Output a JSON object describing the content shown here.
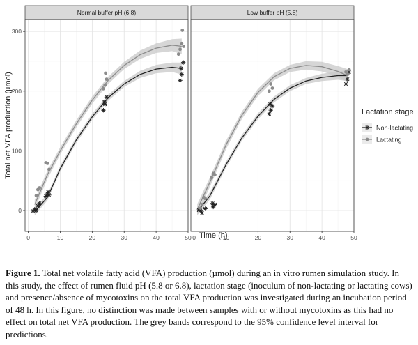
{
  "chart_data": {
    "type": "scatter",
    "xlabel": "Time (h)",
    "ylabel": "Total net VFA production (µmol)",
    "xlim": [
      -1,
      50
    ],
    "ylim": [
      -35,
      320
    ],
    "x_ticks": [
      "0",
      "10",
      "20",
      "30",
      "40",
      "50"
    ],
    "y_ticks": [
      "0",
      "100",
      "200",
      "300"
    ],
    "legend": {
      "title": "Lactation stage",
      "position": "right",
      "entries": [
        "Non-lactating",
        "Lactating"
      ]
    },
    "panels": [
      {
        "strip": "Normal buffer pH (6.8)",
        "series": [
          {
            "name": "Non-lactating",
            "color": "#222222",
            "marker": "asterisk",
            "points": [
              [
                1.5,
                -1
              ],
              [
                2,
                2
              ],
              [
                2.5,
                0
              ],
              [
                3,
                8
              ],
              [
                3.5,
                12
              ],
              [
                5.5,
                24
              ],
              [
                6,
                28
              ],
              [
                6.5,
                26
              ],
              [
                6.2,
                31
              ],
              [
                23.5,
                168
              ],
              [
                24,
                178
              ],
              [
                24.5,
                190
              ],
              [
                23.8,
                182
              ],
              [
                47.5,
                218
              ],
              [
                48,
                228
              ],
              [
                48.5,
                248
              ],
              [
                47.8,
                238
              ]
            ],
            "fit": [
              [
                2,
                -2
              ],
              [
                6,
                22
              ],
              [
                10,
                70
              ],
              [
                15,
                118
              ],
              [
                20,
                157
              ],
              [
                25,
                189
              ],
              [
                30,
                212
              ],
              [
                35,
                228
              ],
              [
                40,
                237
              ],
              [
                45,
                240
              ],
              [
                48,
                238
              ]
            ],
            "band_halfwidth": [
              6,
              5,
              5,
              5,
              5,
              5,
              5,
              6,
              7,
              8,
              10
            ]
          },
          {
            "name": "Lactating",
            "color": "#8c8c8c",
            "marker": "circle",
            "points": [
              [
                2.5,
                25
              ],
              [
                3,
                35
              ],
              [
                3.5,
                38
              ],
              [
                5.5,
                80
              ],
              [
                6,
                79
              ],
              [
                6.5,
                69
              ],
              [
                23.5,
                204
              ],
              [
                24,
                210
              ],
              [
                24.2,
                230
              ],
              [
                24.5,
                220
              ],
              [
                47,
                262
              ],
              [
                47.5,
                270
              ],
              [
                48,
                280
              ],
              [
                48.2,
                302
              ],
              [
                48.6,
                275
              ]
            ],
            "fit": [
              [
                2,
                10
              ],
              [
                6,
                60
              ],
              [
                10,
                100
              ],
              [
                15,
                145
              ],
              [
                20,
                185
              ],
              [
                25,
                218
              ],
              [
                30,
                243
              ],
              [
                35,
                261
              ],
              [
                40,
                272
              ],
              [
                45,
                277
              ],
              [
                48,
                275
              ]
            ],
            "band_halfwidth": [
              8,
              7,
              6,
              6,
              6,
              6,
              6,
              7,
              8,
              10,
              13
            ]
          }
        ]
      },
      {
        "strip": "Low buffer pH (5.8)",
        "series": [
          {
            "name": "Non-lactating",
            "color": "#222222",
            "marker": "asterisk",
            "points": [
              [
                1.5,
                1
              ],
              [
                2,
                0
              ],
              [
                2.5,
                -4
              ],
              [
                3.5,
                3
              ],
              [
                6,
                6
              ],
              [
                6.5,
                10
              ],
              [
                5.8,
                12
              ],
              [
                23.5,
                162
              ],
              [
                24,
                168
              ],
              [
                24.5,
                175
              ],
              [
                23.8,
                178
              ],
              [
                47.5,
                212
              ],
              [
                48,
                220
              ],
              [
                48.5,
                232
              ]
            ],
            "fit": [
              [
                1,
                -2
              ],
              [
                5,
                25
              ],
              [
                10,
                77
              ],
              [
                15,
                122
              ],
              [
                20,
                158
              ],
              [
                25,
                186
              ],
              [
                30,
                205
              ],
              [
                35,
                217
              ],
              [
                40,
                223
              ],
              [
                45,
                226
              ],
              [
                48,
                226
              ]
            ],
            "band_halfwidth": [
              6,
              6,
              5,
              5,
              5,
              5,
              5,
              5,
              6,
              7,
              9
            ]
          },
          {
            "name": "Lactating",
            "color": "#8c8c8c",
            "marker": "circle",
            "points": [
              [
                2,
                4
              ],
              [
                2.5,
                10
              ],
              [
                3,
                22
              ],
              [
                3.5,
                20
              ],
              [
                5.5,
                55
              ],
              [
                6,
                62
              ],
              [
                6.5,
                60
              ],
              [
                23.5,
                200
              ],
              [
                24,
                212
              ],
              [
                24.5,
                205
              ],
              [
                47.5,
                232
              ],
              [
                48,
                228
              ],
              [
                48.5,
                236
              ]
            ],
            "fit": [
              [
                1,
                2
              ],
              [
                5,
                48
              ],
              [
                10,
                110
              ],
              [
                15,
                160
              ],
              [
                20,
                198
              ],
              [
                25,
                224
              ],
              [
                30,
                238
              ],
              [
                35,
                243
              ],
              [
                40,
                241
              ],
              [
                45,
                233
              ],
              [
                48,
                226
              ]
            ],
            "band_halfwidth": [
              9,
              8,
              7,
              6,
              6,
              6,
              6,
              7,
              8,
              9,
              11
            ]
          }
        ]
      }
    ]
  },
  "caption": {
    "lead": "Figure 1.",
    "text": " Total net volatile fatty acid (VFA) production (µmol) during an in vitro rumen simulation study. In this study, the effect of rumen fluid pH (5.8 or 6.8), lactation stage (inoculum of non-lactating or lactating cows) and presence/absence of mycotoxins on the total VFA production was investigated during an incubation period of 48 h. In this figure, no distinction was made between samples with or without mycotoxins as this had no effect on total net VFA production. The grey bands correspond to the 95% confidence level interval for predictions."
  }
}
